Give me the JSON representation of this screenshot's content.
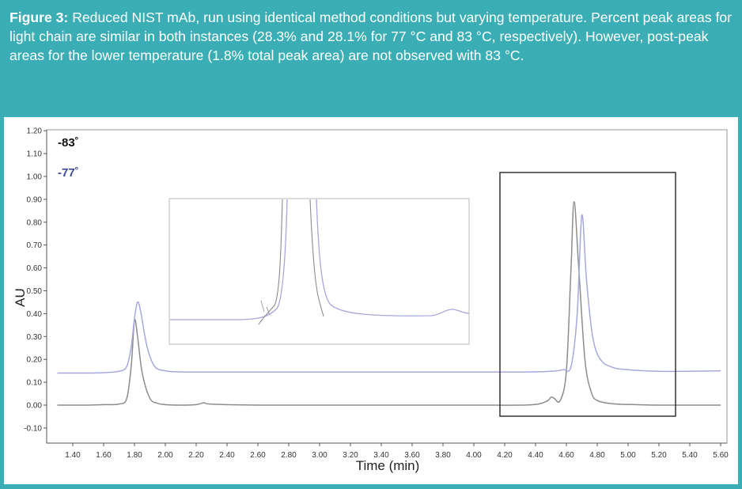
{
  "caption": {
    "label": "Figure 3:",
    "text": "Reduced NIST mAb, run using identical method conditions but varying temperature. Percent peak areas for light chain are similar in both instances (28.3% and 28.1% for 77 °C and 83 °C, respectively). However, post-peak areas for the lower temperature (1.8% total peak area) are not observed with 83 °C."
  },
  "colors": {
    "background": "#3aaeb4",
    "panel": "#ffffff",
    "trace_83": "#8c8c8c",
    "trace_77": "#a7a8dc",
    "legend_83": "#111111",
    "legend_77": "#3d4a9c",
    "box": "#333333",
    "inset_border": "#b8b8b8"
  },
  "chart_data": {
    "type": "line",
    "title": "",
    "xlabel": "Time (min)",
    "ylabel": "AU",
    "xlim": [
      1.3,
      5.6
    ],
    "ylim": [
      -0.12,
      1.2
    ],
    "x_ticks": [
      "1.40",
      "1.60",
      "1.80",
      "2.00",
      "2.20",
      "2.40",
      "2.60",
      "2.80",
      "3.00",
      "3.20",
      "3.40",
      "3.60",
      "3.80",
      "4.00",
      "4.20",
      "4.40",
      "4.60",
      "4.80",
      "5.00",
      "5.20",
      "5.40",
      "5.60"
    ],
    "y_ticks": [
      "-0.10",
      "0.00",
      "0.10",
      "0.20",
      "0.30",
      "0.40",
      "0.50",
      "0.60",
      "0.70",
      "0.80",
      "0.90",
      "1.00",
      "1.10",
      "1.20"
    ],
    "series": [
      {
        "name": "-83˚",
        "x": [
          1.3,
          1.5,
          1.6,
          1.7,
          1.75,
          1.78,
          1.8,
          1.82,
          1.85,
          1.9,
          1.95,
          2.0,
          2.1,
          2.2,
          2.25,
          2.3,
          2.6,
          3.0,
          3.5,
          4.0,
          4.3,
          4.42,
          4.48,
          4.5,
          4.52,
          4.56,
          4.6,
          4.63,
          4.65,
          4.68,
          4.72,
          4.76,
          4.8,
          4.9,
          5.0,
          5.2,
          5.4,
          5.6
        ],
        "values": [
          0.0,
          0.0,
          0.002,
          0.005,
          0.03,
          0.18,
          0.37,
          0.3,
          0.14,
          0.03,
          0.008,
          0.002,
          0.0,
          0.002,
          0.01,
          0.004,
          0.0,
          0.0,
          0.0,
          0.0,
          0.0,
          0.005,
          0.02,
          0.035,
          0.03,
          0.02,
          0.15,
          0.6,
          0.89,
          0.6,
          0.2,
          0.06,
          0.02,
          0.006,
          0.003,
          0.0,
          0.0,
          0.0
        ]
      },
      {
        "name": "-77˚",
        "x": [
          1.3,
          1.5,
          1.6,
          1.7,
          1.75,
          1.78,
          1.8,
          1.82,
          1.84,
          1.88,
          1.93,
          2.0,
          2.1,
          2.3,
          2.6,
          3.0,
          3.5,
          4.0,
          4.3,
          4.5,
          4.58,
          4.63,
          4.67,
          4.7,
          4.73,
          4.77,
          4.82,
          4.9,
          5.0,
          5.2,
          5.4,
          5.6
        ],
        "values": [
          0.14,
          0.14,
          0.142,
          0.148,
          0.17,
          0.26,
          0.38,
          0.45,
          0.41,
          0.26,
          0.17,
          0.15,
          0.145,
          0.145,
          0.145,
          0.145,
          0.145,
          0.145,
          0.145,
          0.148,
          0.155,
          0.17,
          0.4,
          0.83,
          0.55,
          0.3,
          0.2,
          0.165,
          0.155,
          0.148,
          0.148,
          0.15
        ]
      }
    ],
    "legend": [
      "-83˚",
      "-77˚"
    ],
    "legend_position": "top-left",
    "annotations": [
      "inset zoom of peak baseline region",
      "rectangle highlighting main peaks 4.20–5.30 min"
    ]
  }
}
